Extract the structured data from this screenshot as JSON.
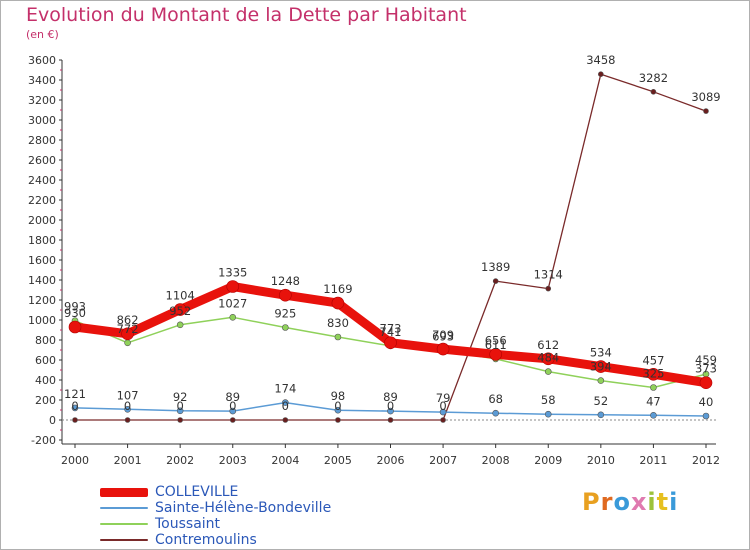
{
  "header": {
    "title": "Evolution du Montant de la Dette par Habitant",
    "subtitle": "(en €)"
  },
  "logo": {
    "text": "Proxiti",
    "colors": [
      "#e8a020",
      "#e06a20",
      "#3a9ad9",
      "#e07ab0",
      "#9cc23a",
      "#e6c020",
      "#3a9ad9"
    ]
  },
  "chart_data": {
    "type": "line",
    "title": "Evolution du Montant de la Dette par Habitant",
    "subtitle": "(en €)",
    "x": [
      "2000",
      "2001",
      "2002",
      "2003",
      "2004",
      "2005",
      "2006",
      "2007",
      "2008",
      "2009",
      "2010",
      "2011",
      "2012"
    ],
    "y_ticks": [
      "-200",
      "0",
      "200",
      "400",
      "600",
      "800",
      "1000",
      "1200",
      "1400",
      "1600",
      "1800",
      "2000",
      "2200",
      "2400",
      "2600",
      "2800",
      "3000",
      "3200",
      "3400",
      "3600"
    ],
    "ylim": [
      -200,
      3600
    ],
    "grid": false,
    "legend_position": "bottom-left",
    "series": [
      {
        "name": "COLLEVILLE",
        "color": "#e8120c",
        "values": [
          930,
          862,
          1104,
          1335,
          1248,
          1169,
          773,
          709,
          656,
          612,
          534,
          457,
          373
        ],
        "labels": [
          "930",
          "862",
          "1104",
          "1335",
          "1248",
          "1169",
          "773",
          "709",
          "656",
          "612",
          "534",
          "457",
          "373"
        ]
      },
      {
        "name": "Sainte-Hélène-Bondeville",
        "color": "#5b9bd5",
        "values": [
          121,
          107,
          92,
          89,
          174,
          98,
          89,
          79,
          68,
          58,
          52,
          47,
          40
        ],
        "labels": [
          "121",
          "107",
          "92",
          "89",
          "174",
          "98",
          "89",
          "79",
          "68",
          "58",
          "52",
          "47",
          "40"
        ]
      },
      {
        "name": "Toussaint",
        "color": "#8fd15a",
        "values": [
          993,
          772,
          952,
          1027,
          925,
          830,
          741,
          693,
          611,
          484,
          394,
          325,
          459
        ],
        "labels": [
          "993",
          "772",
          "952",
          "1027",
          "925",
          "830",
          "741",
          "693",
          "611",
          "484",
          "394",
          "325",
          "459"
        ]
      },
      {
        "name": "Contremoulins",
        "color": "#7a2a2a",
        "values": [
          0,
          0,
          0,
          0,
          0,
          0,
          0,
          0,
          1389,
          1314,
          3458,
          3282,
          3089
        ],
        "labels": [
          "0",
          "0",
          "0",
          "0",
          "0",
          "0",
          "0",
          "0",
          "1389",
          "1314",
          "3458",
          "3282",
          "3089"
        ]
      }
    ]
  }
}
